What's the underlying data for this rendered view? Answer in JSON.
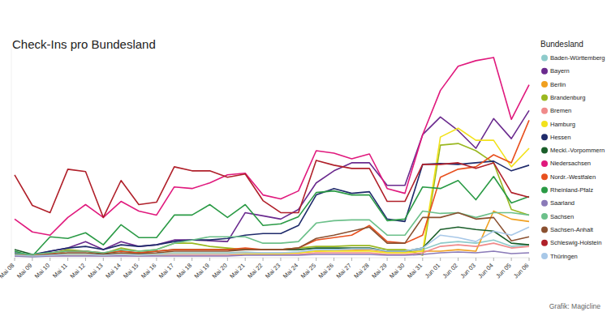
{
  "chart_data": {
    "type": "line",
    "title": "Check-Ins pro Bundesland",
    "legend_title": "Bundesland",
    "source": "Grafik: Magicline",
    "legend": "right",
    "grid": false,
    "tick_labels": "x",
    "ylim": [
      0,
      260
    ],
    "categories": [
      "Mai 08",
      "Mai 09",
      "Mai 10",
      "Mai 11",
      "Mai 12",
      "Mai 13",
      "Mai 14",
      "Mai 15",
      "Mai 16",
      "Mai 17",
      "Mai 18",
      "Mai 19",
      "Mai 20",
      "Mai 21",
      "Mai 22",
      "Mai 23",
      "Mai 24",
      "Mai 25",
      "Mai 26",
      "Mai 27",
      "Mai 28",
      "Mai 29",
      "Mai 30",
      "Mai 31",
      "Jun 01",
      "Jun 02",
      "Jun 03",
      "Jun 04",
      "Jun 05",
      "Jun 06"
    ],
    "series": [
      {
        "name": "Baden-Württemberg",
        "color": "#8ecbcb",
        "values": [
          6,
          4,
          3,
          5,
          5,
          4,
          5,
          4,
          5,
          6,
          6,
          6,
          6,
          7,
          6,
          6,
          7,
          10,
          10,
          11,
          11,
          8,
          8,
          10,
          18,
          20,
          18,
          22,
          14,
          16
        ]
      },
      {
        "name": "Bayern",
        "color": "#6a2a8e",
        "values": [
          6,
          3,
          8,
          12,
          20,
          10,
          20,
          14,
          16,
          22,
          22,
          21,
          20,
          56,
          52,
          48,
          60,
          93,
          108,
          118,
          118,
          90,
          90,
          153,
          175,
          158,
          136,
          173,
          148,
          183
        ]
      },
      {
        "name": "Berlin",
        "color": "#f0a020",
        "values": [
          3,
          2,
          3,
          4,
          4,
          3,
          4,
          3,
          4,
          5,
          5,
          5,
          5,
          6,
          5,
          5,
          6,
          8,
          9,
          9,
          10,
          7,
          7,
          8,
          8,
          10,
          8,
          58,
          48,
          45
        ]
      },
      {
        "name": "Brandenburg",
        "color": "#9ab820",
        "values": [
          4,
          3,
          5,
          10,
          8,
          5,
          12,
          8,
          10,
          18,
          18,
          14,
          12,
          10,
          10,
          10,
          12,
          14,
          14,
          15,
          15,
          10,
          10,
          3,
          140,
          142,
          133,
          118,
          60,
          53
        ]
      },
      {
        "name": "Bremen",
        "color": "#f08a8a",
        "values": [
          2,
          2,
          2,
          3,
          3,
          2,
          3,
          2,
          3,
          3,
          3,
          3,
          3,
          4,
          4,
          4,
          4,
          6,
          6,
          6,
          6,
          4,
          4,
          6,
          14,
          16,
          14,
          18,
          12,
          14
        ]
      },
      {
        "name": "Hamburg",
        "color": "#f2e21c",
        "values": [
          3,
          2,
          3,
          4,
          4,
          3,
          4,
          3,
          4,
          5,
          5,
          5,
          5,
          5,
          5,
          5,
          6,
          8,
          8,
          8,
          8,
          6,
          6,
          8,
          150,
          161,
          146,
          146,
          113,
          136
        ]
      },
      {
        "name": "Hessen",
        "color": "#1f2b6b",
        "values": [
          5,
          4,
          8,
          12,
          14,
          10,
          16,
          14,
          16,
          20,
          22,
          22,
          24,
          28,
          30,
          30,
          40,
          78,
          86,
          80,
          82,
          48,
          45,
          116,
          117,
          116,
          118,
          120,
          108,
          115
        ]
      },
      {
        "name": "Meckl.-Vorpommern",
        "color": "#1a5e2a",
        "values": [
          10,
          4,
          6,
          8,
          8,
          5,
          8,
          6,
          8,
          10,
          10,
          10,
          10,
          10,
          10,
          10,
          10,
          12,
          12,
          12,
          12,
          8,
          8,
          12,
          35,
          38,
          35,
          33,
          18,
          16
        ]
      },
      {
        "name": "Niedersachsen",
        "color": "#e0197d",
        "values": [
          48,
          32,
          28,
          50,
          66,
          50,
          70,
          58,
          53,
          88,
          86,
          93,
          103,
          105,
          78,
          73,
          83,
          133,
          130,
          123,
          129,
          86,
          80,
          153,
          208,
          238,
          245,
          249,
          172,
          215
        ]
      },
      {
        "name": "Nordr.-Westfalen",
        "color": "#e8501e",
        "values": [
          4,
          3,
          5,
          8,
          8,
          6,
          8,
          6,
          8,
          10,
          10,
          10,
          10,
          12,
          10,
          10,
          12,
          22,
          25,
          28,
          40,
          20,
          18,
          28,
          100,
          110,
          113,
          128,
          118,
          171
        ]
      },
      {
        "name": "Rheinland-Pfalz",
        "color": "#2a9a45",
        "values": [
          8,
          2,
          26,
          24,
          31,
          16,
          41,
          25,
          25,
          53,
          53,
          66,
          50,
          66,
          40,
          42,
          51,
          81,
          83,
          78,
          78,
          46,
          48,
          88,
          86,
          96,
          72,
          101,
          68,
          76
        ]
      },
      {
        "name": "Saarland",
        "color": "#8a7ab8",
        "values": [
          2,
          1,
          2,
          2,
          2,
          2,
          2,
          2,
          2,
          2,
          2,
          2,
          2,
          3,
          3,
          3,
          3,
          4,
          4,
          4,
          4,
          3,
          3,
          4,
          6,
          7,
          6,
          8,
          5,
          6
        ]
      },
      {
        "name": "Sachsen",
        "color": "#6cc08a",
        "values": [
          5,
          4,
          6,
          8,
          8,
          6,
          10,
          8,
          10,
          18,
          22,
          26,
          26,
          26,
          18,
          18,
          20,
          43,
          46,
          47,
          47,
          28,
          28,
          58,
          55,
          56,
          50,
          56,
          56,
          53
        ]
      },
      {
        "name": "Sachsen-Anhalt",
        "color": "#8a5030",
        "values": [
          3,
          2,
          4,
          6,
          6,
          4,
          6,
          5,
          6,
          8,
          8,
          8,
          8,
          10,
          10,
          10,
          12,
          24,
          28,
          33,
          38,
          18,
          18,
          50,
          50,
          56,
          48,
          50,
          21,
          26
        ]
      },
      {
        "name": "Schleswig-Holstein",
        "color": "#b0202a",
        "values": [
          103,
          65,
          56,
          110,
          107,
          50,
          96,
          66,
          69,
          113,
          108,
          108,
          100,
          104,
          71,
          56,
          56,
          121,
          115,
          111,
          111,
          70,
          70,
          116,
          116,
          118,
          111,
          118,
          81,
          75
        ]
      },
      {
        "name": "Thüringen",
        "color": "#a8c8e8",
        "values": [
          3,
          2,
          3,
          4,
          4,
          3,
          4,
          3,
          4,
          5,
          5,
          5,
          5,
          6,
          6,
          6,
          7,
          10,
          10,
          11,
          11,
          8,
          8,
          12,
          28,
          25,
          20,
          33,
          28,
          38
        ]
      }
    ]
  }
}
